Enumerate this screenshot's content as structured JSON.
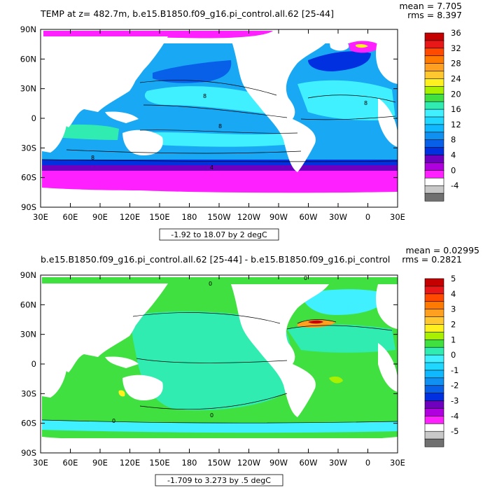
{
  "chart_data": [
    {
      "type": "heatmap",
      "title": "TEMP at z= 482.7m, b.e15.B1850.f09_g16.pi_control.all.62 [25-44]",
      "stats": {
        "mean": "mean = 7.705",
        "rms": "rms = 8.397"
      },
      "x_ticks": [
        "30E",
        "60E",
        "90E",
        "120E",
        "150E",
        "180",
        "150W",
        "120W",
        "90W",
        "60W",
        "30W",
        "0",
        "30E"
      ],
      "y_ticks": [
        "90N",
        "60N",
        "30N",
        "0",
        "30S",
        "60S",
        "90S"
      ],
      "contour_note": "-1.92 to 18.07 by 2 degC",
      "colorbar": {
        "labels": [
          "36",
          "32",
          "28",
          "24",
          "20",
          "16",
          "12",
          "8",
          "4",
          "0",
          "-4"
        ],
        "colors": [
          "#c40000",
          "#e81818",
          "#ff4a00",
          "#ff7a00",
          "#ffa020",
          "#ffc830",
          "#fff020",
          "#a8f000",
          "#40e040",
          "#30ecb0",
          "#40f0ff",
          "#20d8ff",
          "#10b8ff",
          "#1090f0",
          "#0860e8",
          "#0030e0",
          "#7000c0",
          "#b000e0",
          "#ff20ff",
          "#ffffff",
          "#c8c8c8",
          "#707070"
        ]
      },
      "contour_labels": [
        "8",
        "8",
        "8",
        "4",
        "8"
      ],
      "lon_range": [
        30,
        390
      ],
      "lat_range": [
        -90,
        90
      ]
    },
    {
      "type": "heatmap",
      "title": "b.e15.B1850.f09_g16.pi_control.all.62 [25-44] - b.e15.B1850.f09_g16.pi_control",
      "stats": {
        "mean": "mean = 0.02995",
        "rms": "rms = 0.2821"
      },
      "x_ticks": [
        "30E",
        "60E",
        "90E",
        "120E",
        "150E",
        "180",
        "150W",
        "120W",
        "90W",
        "60W",
        "30W",
        "0",
        "30E"
      ],
      "y_ticks": [
        "90N",
        "60N",
        "30N",
        "0",
        "30S",
        "60S",
        "90S"
      ],
      "contour_note": "-1.709 to 3.273 by .5 degC",
      "colorbar": {
        "labels": [
          "5",
          "4",
          "3",
          "2",
          "1",
          "0",
          "-1",
          "-2",
          "-3",
          "-4",
          "-5"
        ],
        "colors": [
          "#c40000",
          "#e81818",
          "#ff4a00",
          "#ff7a00",
          "#ffa020",
          "#ffc830",
          "#fff020",
          "#a8f000",
          "#40e040",
          "#30ecb0",
          "#40f0ff",
          "#20d8ff",
          "#10b8ff",
          "#1090f0",
          "#0860e8",
          "#0030e0",
          "#7000c0",
          "#b000e0",
          "#ff20ff",
          "#ffffff",
          "#c8c8c8",
          "#707070"
        ]
      },
      "contour_labels": [
        "0",
        "0",
        "0",
        "0"
      ],
      "lon_range": [
        30,
        390
      ],
      "lat_range": [
        -90,
        90
      ]
    }
  ]
}
